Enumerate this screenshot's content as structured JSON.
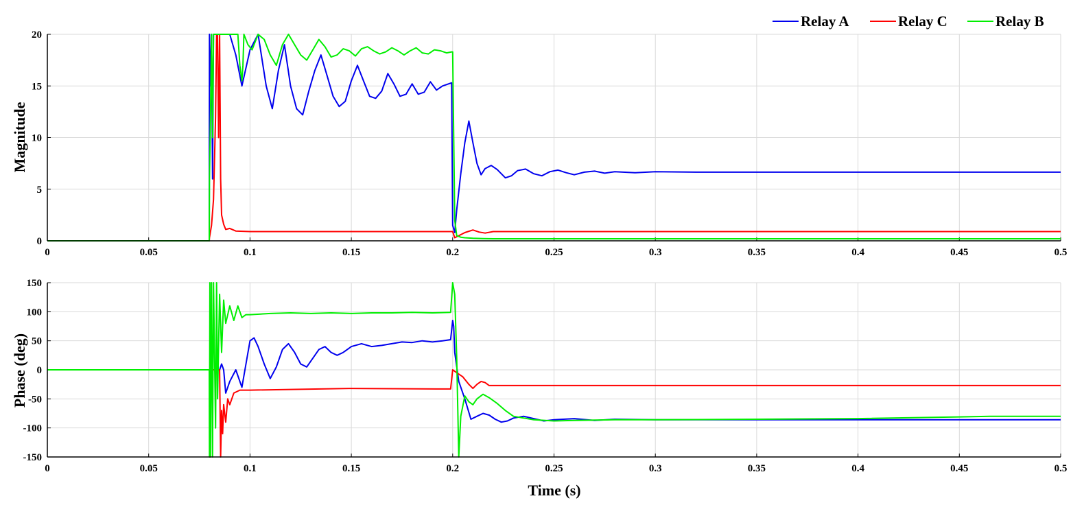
{
  "legend": [
    "Relay A",
    "Relay C",
    "Relay B"
  ],
  "colors": {
    "Relay A": "#0000ee",
    "Relay C": "#ff0000",
    "Relay B": "#00ee00"
  },
  "chart_data": [
    {
      "type": "line",
      "panel": "top",
      "xlabel": "",
      "ylabel": "Magnitude",
      "xlim": [
        0,
        0.5
      ],
      "ylim": [
        0,
        20
      ],
      "xticks": [
        "0",
        "0.05",
        "0.1",
        "0.15",
        "0.2",
        "0.25",
        "0.3",
        "0.35",
        "0.4",
        "0.45",
        "0.5"
      ],
      "yticks": [
        "0",
        "5",
        "10",
        "15",
        "20"
      ],
      "grid": true,
      "legend_position": "top-right",
      "series": [
        {
          "name": "Relay A",
          "color": "#0000ee",
          "x": [
            0,
            0.0799,
            0.08,
            0.0805,
            0.081,
            0.0815,
            0.082,
            0.083,
            0.085,
            0.087,
            0.09,
            0.093,
            0.096,
            0.1,
            0.104,
            0.108,
            0.111,
            0.114,
            0.117,
            0.12,
            0.123,
            0.126,
            0.129,
            0.132,
            0.135,
            0.138,
            0.141,
            0.144,
            0.147,
            0.15,
            0.153,
            0.156,
            0.159,
            0.162,
            0.165,
            0.168,
            0.171,
            0.174,
            0.177,
            0.18,
            0.183,
            0.186,
            0.189,
            0.192,
            0.195,
            0.1995,
            0.2,
            0.201,
            0.202,
            0.204,
            0.206,
            0.208,
            0.21,
            0.212,
            0.214,
            0.216,
            0.219,
            0.222,
            0.226,
            0.229,
            0.232,
            0.236,
            0.24,
            0.244,
            0.248,
            0.252,
            0.256,
            0.26,
            0.265,
            0.27,
            0.275,
            0.28,
            0.29,
            0.3,
            0.32,
            0.35,
            0.4,
            0.45,
            0.5
          ],
          "y": [
            0,
            0,
            20,
            15,
            20,
            6,
            20,
            20,
            20,
            20,
            20,
            18,
            15,
            18.5,
            20,
            15,
            12.8,
            16.5,
            19,
            15,
            12.8,
            12.2,
            14.5,
            16.5,
            18,
            16,
            14,
            13,
            13.5,
            15.5,
            17,
            15.5,
            14,
            13.8,
            14.5,
            16.2,
            15.2,
            14,
            14.2,
            15.2,
            14.2,
            14.4,
            15.4,
            14.6,
            15,
            15.3,
            1.5,
            0.8,
            3,
            6.5,
            9.5,
            11.6,
            9.5,
            7.5,
            6.4,
            7,
            7.3,
            6.9,
            6.1,
            6.3,
            6.8,
            6.95,
            6.5,
            6.3,
            6.7,
            6.85,
            6.6,
            6.4,
            6.65,
            6.75,
            6.55,
            6.7,
            6.6,
            6.7,
            6.65,
            6.65,
            6.65,
            6.65,
            6.65
          ]
        },
        {
          "name": "Relay C",
          "color": "#ff0000",
          "x": [
            0,
            0.0799,
            0.08,
            0.081,
            0.082,
            0.083,
            0.0835,
            0.084,
            0.0845,
            0.085,
            0.0855,
            0.086,
            0.087,
            0.088,
            0.09,
            0.093,
            0.1,
            0.15,
            0.2,
            0.201,
            0.203,
            0.206,
            0.21,
            0.213,
            0.216,
            0.22,
            0.25,
            0.3,
            0.5
          ],
          "y": [
            0,
            0,
            0.3,
            1.5,
            4,
            12,
            20,
            20,
            10,
            20,
            6,
            2.5,
            1.6,
            1.1,
            1.2,
            0.95,
            0.9,
            0.9,
            0.9,
            0.3,
            0.5,
            0.8,
            1.05,
            0.85,
            0.75,
            0.9,
            0.9,
            0.9,
            0.9
          ]
        },
        {
          "name": "Relay B",
          "color": "#00ee00",
          "x": [
            0,
            0.0799,
            0.08,
            0.0805,
            0.081,
            0.0815,
            0.082,
            0.085,
            0.09,
            0.094,
            0.095,
            0.096,
            0.0965,
            0.097,
            0.099,
            0.101,
            0.104,
            0.107,
            0.11,
            0.113,
            0.116,
            0.119,
            0.122,
            0.125,
            0.128,
            0.131,
            0.134,
            0.137,
            0.14,
            0.143,
            0.146,
            0.149,
            0.152,
            0.155,
            0.158,
            0.161,
            0.164,
            0.167,
            0.17,
            0.173,
            0.176,
            0.179,
            0.182,
            0.185,
            0.188,
            0.191,
            0.194,
            0.197,
            0.1995,
            0.2,
            0.201,
            0.202,
            0.204,
            0.206,
            0.21,
            0.215,
            0.22,
            0.25,
            0.3,
            0.5
          ],
          "y": [
            0,
            0,
            6,
            12,
            20,
            10,
            20,
            20,
            20,
            20,
            17,
            15.5,
            17,
            20,
            19,
            18.5,
            20,
            19.5,
            18,
            17,
            19,
            20,
            19,
            18,
            17.5,
            18.5,
            19.5,
            18.8,
            17.8,
            18,
            18.6,
            18.4,
            17.9,
            18.6,
            18.8,
            18.4,
            18.1,
            18.3,
            18.7,
            18.4,
            18.0,
            18.4,
            18.7,
            18.2,
            18.1,
            18.5,
            18.4,
            18.2,
            18.3,
            18.3,
            2,
            0.5,
            0.35,
            0.3,
            0.25,
            0.22,
            0.2,
            0.2,
            0.2,
            0.2
          ]
        }
      ]
    },
    {
      "type": "line",
      "panel": "bottom",
      "xlabel": "Time (s)",
      "ylabel": "Phase (deg)",
      "xlim": [
        0,
        0.5
      ],
      "ylim": [
        -150,
        150
      ],
      "xticks": [
        "0",
        "0.05",
        "0.1",
        "0.15",
        "0.2",
        "0.25",
        "0.3",
        "0.35",
        "0.4",
        "0.45",
        "0.5"
      ],
      "yticks": [
        "-150",
        "-100",
        "-50",
        "0",
        "50",
        "100",
        "150"
      ],
      "grid": true,
      "series": [
        {
          "name": "Relay A",
          "color": "#0000ee",
          "x": [
            0,
            0.0799,
            0.081,
            0.083,
            0.084,
            0.085,
            0.086,
            0.087,
            0.088,
            0.09,
            0.093,
            0.096,
            0.098,
            0.1,
            0.102,
            0.104,
            0.107,
            0.11,
            0.113,
            0.116,
            0.119,
            0.122,
            0.125,
            0.128,
            0.131,
            0.134,
            0.137,
            0.14,
            0.143,
            0.146,
            0.15,
            0.155,
            0.16,
            0.165,
            0.17,
            0.175,
            0.18,
            0.185,
            0.19,
            0.195,
            0.199,
            0.2,
            0.2005,
            0.201,
            0.203,
            0.206,
            0.209,
            0.212,
            0.215,
            0.218,
            0.221,
            0.224,
            0.227,
            0.23,
            0.235,
            0.24,
            0.245,
            0.25,
            0.26,
            0.27,
            0.28,
            0.3,
            0.35,
            0.4,
            0.5
          ],
          "y": [
            0,
            0,
            0,
            0,
            0,
            0,
            10,
            0,
            -40,
            -20,
            0,
            -30,
            10,
            50,
            55,
            40,
            10,
            -15,
            5,
            35,
            45,
            30,
            10,
            5,
            20,
            35,
            40,
            30,
            25,
            30,
            40,
            45,
            40,
            42,
            45,
            48,
            47,
            50,
            48,
            50,
            52,
            85,
            75,
            30,
            -20,
            -50,
            -85,
            -80,
            -75,
            -78,
            -85,
            -90,
            -88,
            -83,
            -80,
            -84,
            -88,
            -86,
            -84,
            -87,
            -85,
            -86,
            -86,
            -86,
            -86
          ]
        },
        {
          "name": "Relay C",
          "color": "#ff0000",
          "x": [
            0,
            0.0799,
            0.085,
            0.0855,
            0.086,
            0.0865,
            0.087,
            0.088,
            0.089,
            0.09,
            0.092,
            0.095,
            0.1,
            0.15,
            0.195,
            0.199,
            0.2,
            0.202,
            0.205,
            0.208,
            0.21,
            0.212,
            0.214,
            0.216,
            0.218,
            0.222,
            0.25,
            0.5
          ],
          "y": [
            0,
            0,
            0,
            -150,
            -70,
            -110,
            -60,
            -90,
            -50,
            -60,
            -40,
            -35,
            -35,
            -32,
            -33,
            -33,
            0,
            -5,
            -12,
            -25,
            -32,
            -25,
            -20,
            -22,
            -27,
            -27,
            -27,
            -27
          ]
        },
        {
          "name": "Relay B",
          "color": "#00ee00",
          "x": [
            0,
            0.0799,
            0.08,
            0.0802,
            0.0805,
            0.081,
            0.0815,
            0.082,
            0.083,
            0.0835,
            0.084,
            0.085,
            0.086,
            0.087,
            0.088,
            0.09,
            0.092,
            0.094,
            0.096,
            0.098,
            0.1,
            0.11,
            0.12,
            0.13,
            0.14,
            0.15,
            0.16,
            0.17,
            0.18,
            0.19,
            0.199,
            0.2,
            0.201,
            0.202,
            0.203,
            0.204,
            0.206,
            0.208,
            0.21,
            0.212,
            0.215,
            0.218,
            0.222,
            0.226,
            0.23,
            0.24,
            0.25,
            0.26,
            0.28,
            0.3,
            0.35,
            0.4,
            0.45,
            0.465,
            0.48,
            0.5
          ],
          "y": [
            0,
            0,
            -150,
            150,
            -150,
            150,
            -150,
            150,
            -100,
            150,
            -50,
            130,
            30,
            120,
            80,
            110,
            85,
            110,
            90,
            95,
            95,
            97,
            98,
            97,
            98,
            97,
            98,
            98,
            99,
            98,
            99,
            150,
            130,
            20,
            -150,
            -80,
            -45,
            -55,
            -60,
            -50,
            -42,
            -48,
            -58,
            -70,
            -80,
            -86,
            -88,
            -87,
            -86,
            -86,
            -85,
            -84,
            -81,
            -80,
            -80,
            -80
          ]
        }
      ]
    }
  ]
}
